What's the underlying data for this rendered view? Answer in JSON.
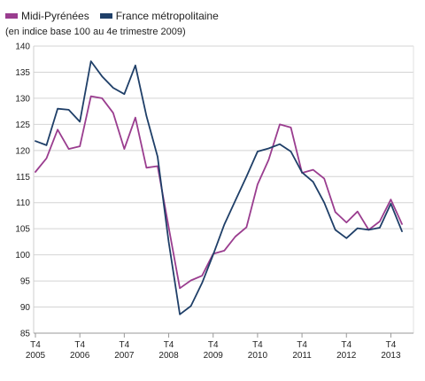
{
  "legend": [
    {
      "label": "Midi-Pyrénées",
      "color": "#9a3d8f"
    },
    {
      "label": "France métropolitaine",
      "color": "#1f3f68"
    }
  ],
  "subtitle": "(en indice base 100 au 4e trimestre 2009)",
  "chart_data": {
    "type": "line",
    "title": "",
    "xlabel": "",
    "ylabel": "",
    "ylim": [
      85,
      140
    ],
    "yticks": [
      85,
      90,
      95,
      100,
      105,
      110,
      115,
      120,
      125,
      130,
      135,
      140
    ],
    "grid": true,
    "legend_position": "top-left",
    "x": [
      "T4 2005",
      "T1 2006",
      "T2 2006",
      "T3 2006",
      "T4 2006",
      "T1 2007",
      "T2 2007",
      "T3 2007",
      "T4 2007",
      "T1 2008",
      "T2 2008",
      "T3 2008",
      "T4 2008",
      "T1 2009",
      "T2 2009",
      "T3 2009",
      "T4 2009",
      "T1 2010",
      "T2 2010",
      "T3 2010",
      "T4 2010",
      "T1 2011",
      "T2 2011",
      "T3 2011",
      "T4 2011",
      "T1 2012",
      "T2 2012",
      "T3 2012",
      "T4 2012",
      "T1 2013",
      "T2 2013",
      "T3 2013",
      "T4 2013",
      "T1 2014"
    ],
    "xtick_labels": [
      {
        "line1": "T4",
        "line2": "2005"
      },
      {
        "line1": "T4",
        "line2": "2006"
      },
      {
        "line1": "T4",
        "line2": "2007"
      },
      {
        "line1": "T4",
        "line2": "2008"
      },
      {
        "line1": "T4",
        "line2": "2009"
      },
      {
        "line1": "T4",
        "line2": "2010"
      },
      {
        "line1": "T4",
        "line2": "2011"
      },
      {
        "line1": "T4",
        "line2": "2012"
      },
      {
        "line1": "T4",
        "line2": "2013"
      }
    ],
    "series": [
      {
        "name": "Midi-Pyrénées",
        "color": "#9a3d8f",
        "values": [
          115.9,
          118.5,
          124.0,
          120.3,
          120.8,
          130.4,
          130.0,
          127.2,
          120.3,
          126.3,
          116.7,
          117.0,
          105.3,
          93.6,
          95.1,
          96.0,
          100.2,
          100.8,
          103.5,
          105.3,
          113.5,
          118.2,
          125.0,
          124.4,
          115.7,
          116.3,
          114.6,
          108.2,
          106.2,
          108.3,
          104.8,
          106.4,
          110.6,
          105.9
        ]
      },
      {
        "name": "France métropolitaine",
        "color": "#1f3f68",
        "values": [
          121.8,
          121.0,
          128.0,
          127.8,
          125.5,
          137.1,
          134.2,
          132.0,
          130.8,
          136.3,
          126.6,
          118.8,
          102.5,
          88.6,
          90.2,
          94.6,
          100.0,
          105.8,
          110.4,
          115.0,
          119.8,
          120.4,
          121.2,
          119.8,
          115.8,
          114.0,
          110.0,
          104.8,
          103.2,
          105.1,
          104.8,
          105.2,
          109.8,
          104.5
        ]
      }
    ]
  }
}
